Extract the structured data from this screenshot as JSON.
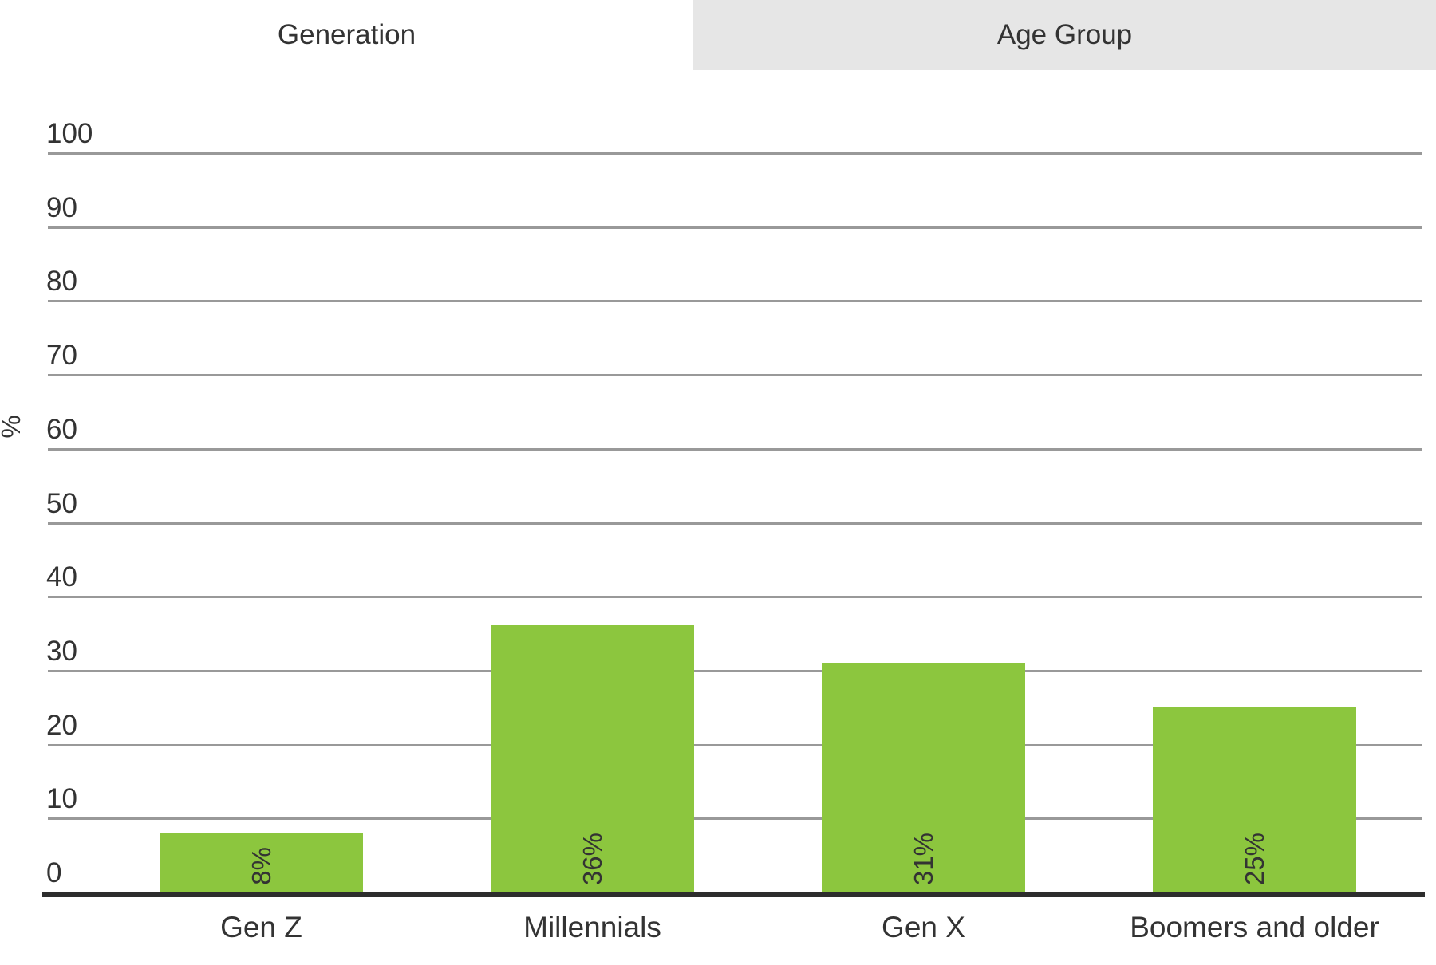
{
  "tabs": [
    {
      "label": "Generation",
      "active": true
    },
    {
      "label": "Age Group",
      "active": false
    }
  ],
  "chart_data": {
    "type": "bar",
    "title": "",
    "categories": [
      "Gen Z",
      "Millennials",
      "Gen X",
      "Boomers and older"
    ],
    "values": [
      8,
      36,
      31,
      25
    ],
    "data_labels": [
      "8%",
      "36%",
      "31%",
      "25%"
    ],
    "xlabel": "",
    "ylabel": "%",
    "ylim": [
      0,
      100
    ],
    "yticks": [
      0,
      10,
      20,
      30,
      40,
      50,
      60,
      70,
      80,
      90,
      100
    ],
    "grid": true,
    "legend": "none",
    "data_label_rotation": -90,
    "colors": {
      "bar": "#8cc63e",
      "gridline": "#999999",
      "axis_line": "#2d2d2d",
      "text": "#333333",
      "inactive_tab_bg": "#e6e6e6",
      "active_tab_bg": "#ffffff"
    }
  }
}
